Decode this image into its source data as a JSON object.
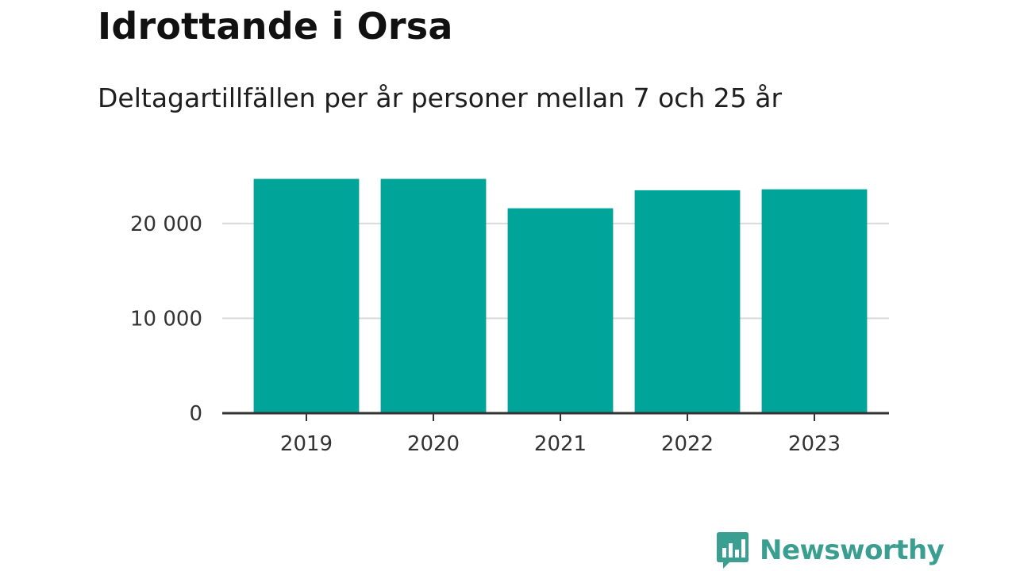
{
  "chart_data": {
    "type": "bar",
    "title": "Idrottande i Orsa",
    "subtitle": "Deltagartillfällen per år personer mellan 7 och 25 år",
    "categories": [
      "2019",
      "2020",
      "2021",
      "2022",
      "2023"
    ],
    "values": [
      24700,
      24700,
      21600,
      23500,
      23600
    ],
    "ylim": [
      0,
      26000
    ],
    "yticks": [
      0,
      10000,
      20000
    ],
    "ytick_labels": [
      "0",
      "10 000",
      "20 000"
    ],
    "xlabel": "",
    "ylabel": "",
    "grid": true,
    "legend": "none",
    "bar_color": "#00a499"
  },
  "brand": {
    "name": "Newsworthy",
    "color": "#3a9e90",
    "icon": "bar-chart-speech-bubble-icon"
  }
}
